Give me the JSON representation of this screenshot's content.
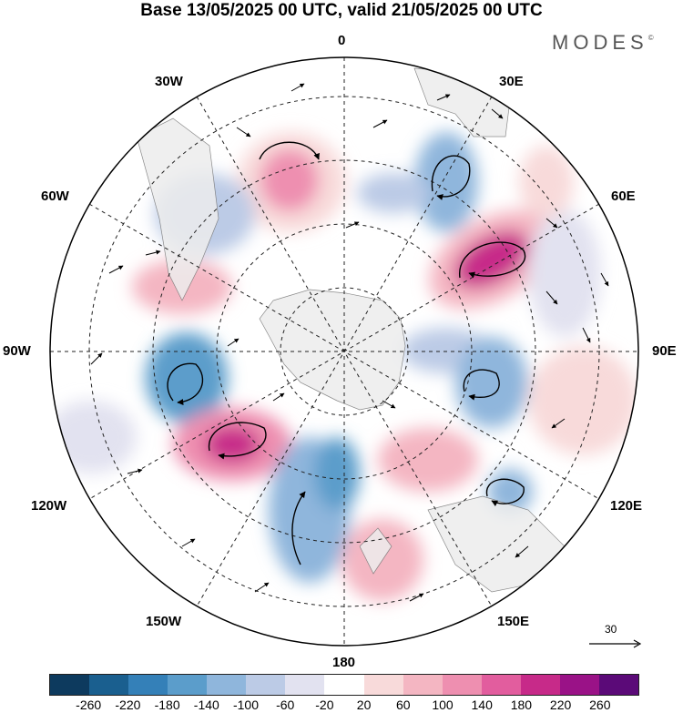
{
  "title": "Base 13/05/2025 00 UTC, valid 21/05/2025 00 UTC",
  "brand": "MODES",
  "brand_mark": "©",
  "longitude_labels": {
    "lon_0": "0",
    "lon_30e": "30E",
    "lon_60e": "60E",
    "lon_90e": "90E",
    "lon_120e": "120E",
    "lon_150e": "150E",
    "lon_180": "180",
    "lon_150w": "150W",
    "lon_120w": "120W",
    "lon_90w": "90W",
    "lon_60w": "60W",
    "lon_30w": "30W"
  },
  "reference_vector": {
    "value": "30"
  },
  "colorbar": {
    "colors": [
      "#0d3a5e",
      "#1a5f8f",
      "#3480b8",
      "#5b9dcb",
      "#8fb6dc",
      "#bccbe6",
      "#e2e2f0",
      "#ffffff",
      "#f8dada",
      "#f4b6c2",
      "#ee8fb0",
      "#e25d9e",
      "#c72a89",
      "#9a1287",
      "#5b0a78"
    ],
    "ticks": [
      "-260",
      "-220",
      "-180",
      "-140",
      "-100",
      "-60",
      "-20",
      "20",
      "60",
      "100",
      "140",
      "180",
      "220",
      "260"
    ]
  }
}
